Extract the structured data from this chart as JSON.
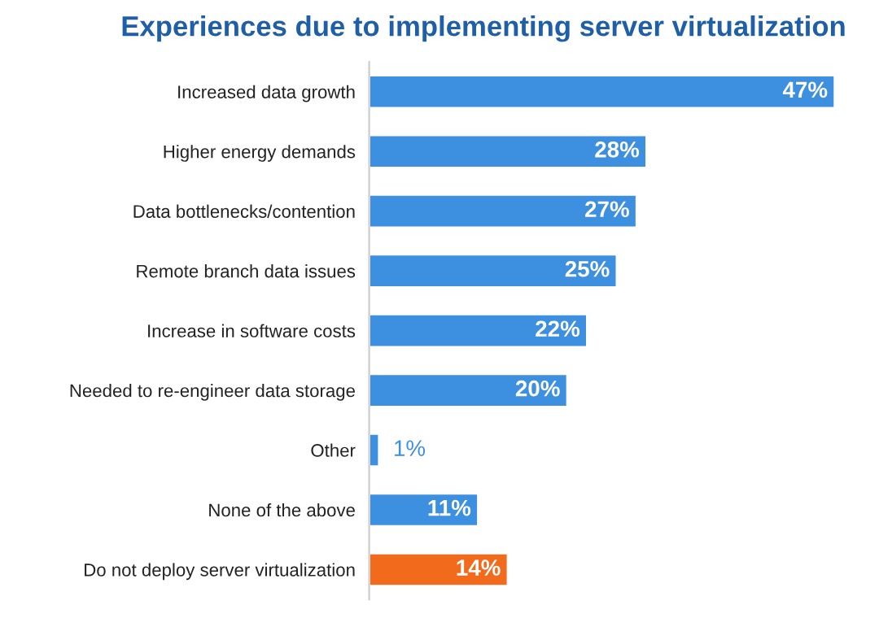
{
  "chart_data": {
    "type": "bar",
    "orientation": "horizontal",
    "title": "Experiences due to implementing server virtualization",
    "categories": [
      "Increased data growth",
      "Higher energy demands",
      "Data bottlenecks/contention",
      "Remote branch data issues",
      "Increase in software costs",
      "Needed to re-engineer data storage",
      "Other",
      "None of the above",
      "Do not deploy server virtualization"
    ],
    "values": [
      47,
      28,
      27,
      25,
      22,
      20,
      1,
      11,
      14
    ],
    "colors": [
      "#3d8fe0",
      "#3d8fe0",
      "#3d8fe0",
      "#3d8fe0",
      "#3d8fe0",
      "#3d8fe0",
      "#3d8fe0",
      "#3d8fe0",
      "#f26b1d"
    ],
    "value_labels": [
      "47%",
      "28%",
      "27%",
      "25%",
      "22%",
      "20%",
      "1%",
      "11%",
      "14%"
    ],
    "tick_labels": "y",
    "grid": false,
    "legend": false
  }
}
